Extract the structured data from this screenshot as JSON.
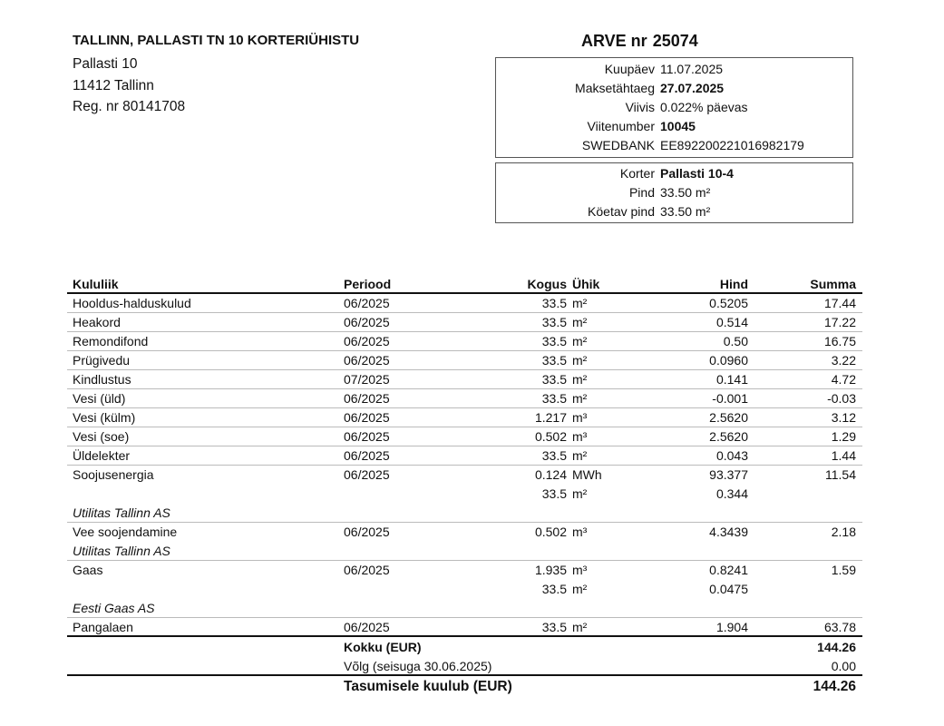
{
  "seller": {
    "name": "TALLINN, PALLASTI TN 10 KORTERIÜHISTU",
    "address_line1": "Pallasti 10",
    "address_line2": "11412 Tallinn",
    "reg": "Reg. nr 80141708"
  },
  "invoice": {
    "label": "ARVE nr",
    "number": "25074",
    "details": [
      {
        "k": "Kuupäev",
        "v": "11.07.2025",
        "bold": false
      },
      {
        "k": "Maksetähtaeg",
        "v": "27.07.2025",
        "bold": true
      },
      {
        "k": "Viivis",
        "v": "0.022% päevas",
        "bold": false
      },
      {
        "k": "Viitenumber",
        "v": "10045",
        "bold": true
      },
      {
        "k": "SWEDBANK",
        "v": "EE892200221016982179",
        "bold": false
      }
    ],
    "apartment": [
      {
        "k": "Korter",
        "v": "Pallasti 10-4",
        "bold": true
      },
      {
        "k": "Pind",
        "v": "33.50 m²",
        "bold": false
      },
      {
        "k": "Köetav pind",
        "v": "33.50 m²",
        "bold": false
      }
    ]
  },
  "table": {
    "headers": {
      "name": "Kululiik",
      "period": "Periood",
      "qty": "Kogus",
      "unit": "Ühik",
      "price": "Hind",
      "sum": "Summa"
    },
    "groups": [
      {
        "lines": [
          {
            "name": "Hooldus-halduskulud",
            "period": "06/2025",
            "qty": "33.5",
            "unit": "m²",
            "price": "0.5205",
            "sum": "17.44"
          }
        ]
      },
      {
        "lines": [
          {
            "name": "Heakord",
            "period": "06/2025",
            "qty": "33.5",
            "unit": "m²",
            "price": "0.514",
            "sum": "17.22"
          }
        ]
      },
      {
        "lines": [
          {
            "name": "Remondifond",
            "period": "06/2025",
            "qty": "33.5",
            "unit": "m²",
            "price": "0.50",
            "sum": "16.75"
          }
        ]
      },
      {
        "lines": [
          {
            "name": "Prügivedu",
            "period": "06/2025",
            "qty": "33.5",
            "unit": "m²",
            "price": "0.0960",
            "sum": "3.22"
          }
        ]
      },
      {
        "lines": [
          {
            "name": "Kindlustus",
            "period": "07/2025",
            "qty": "33.5",
            "unit": "m²",
            "price": "0.141",
            "sum": "4.72"
          }
        ]
      },
      {
        "lines": [
          {
            "name": "Vesi (üld)",
            "period": "06/2025",
            "qty": "33.5",
            "unit": "m²",
            "price": "-0.001",
            "sum": "-0.03"
          }
        ]
      },
      {
        "lines": [
          {
            "name": "Vesi (külm)",
            "period": "06/2025",
            "qty": "1.217",
            "unit": "m³",
            "price": "2.5620",
            "sum": "3.12"
          }
        ]
      },
      {
        "lines": [
          {
            "name": "Vesi (soe)",
            "period": "06/2025",
            "qty": "0.502",
            "unit": "m³",
            "price": "2.5620",
            "sum": "1.29"
          }
        ]
      },
      {
        "lines": [
          {
            "name": "Üldelekter",
            "period": "06/2025",
            "qty": "33.5",
            "unit": "m²",
            "price": "0.043",
            "sum": "1.44"
          }
        ]
      },
      {
        "lines": [
          {
            "name": "Soojusenergia",
            "period": "06/2025",
            "qty": "0.124",
            "unit": "MWh",
            "price": "93.377",
            "sum": "11.54"
          },
          {
            "qty": "33.5",
            "unit": "m²",
            "price": "0.344"
          },
          {
            "supplier": "Utilitas Tallinn AS"
          }
        ]
      },
      {
        "lines": [
          {
            "name": "Vee soojendamine",
            "period": "06/2025",
            "qty": "0.502",
            "unit": "m³",
            "price": "4.3439",
            "sum": "2.18"
          },
          {
            "supplier": "Utilitas Tallinn AS"
          }
        ]
      },
      {
        "lines": [
          {
            "name": "Gaas",
            "period": "06/2025",
            "qty": "1.935",
            "unit": "m³",
            "price": "0.8241",
            "sum": "1.59"
          },
          {
            "qty": "33.5",
            "unit": "m²",
            "price": "0.0475"
          },
          {
            "supplier": "Eesti Gaas AS"
          }
        ]
      },
      {
        "lines": [
          {
            "name": "Pangalaen",
            "period": "06/2025",
            "qty": "33.5",
            "unit": "m²",
            "price": "1.904",
            "sum": "63.78"
          }
        ]
      }
    ]
  },
  "totals": {
    "total_label": "Kokku (EUR)",
    "total": "144.26",
    "debt_label": "Võlg (seisuga 30.06.2025)",
    "debt": "0.00",
    "due_label": "Tasumisele kuulub (EUR)",
    "due": "144.26"
  }
}
